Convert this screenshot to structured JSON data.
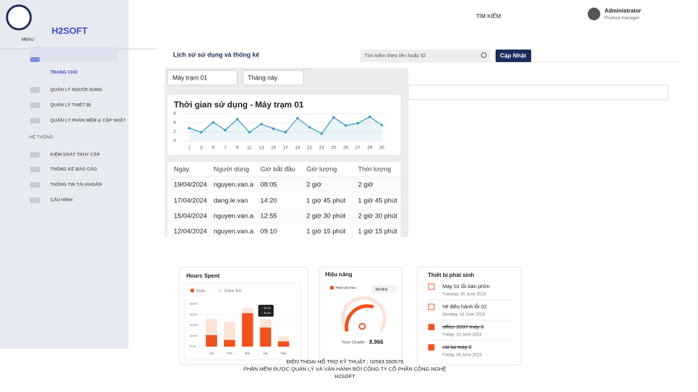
{
  "sidebar": {
    "brand": "H2SOFT",
    "menu_label": "MENU",
    "menu": [
      "TRANG CHỦ",
      "QUẢN LÝ NGƯỜI DÙNG",
      "QUẢN LÝ THIẾT BỊ",
      "QUẢN LÝ PHẦN MỀM & CẬP NHẬT"
    ],
    "section": "HỆ THỐNG",
    "system": [
      "KIỂM SOÁT TRUY CẬP",
      "THỐNG KÊ BÁO CÁO",
      "THÔNG TIN TÀI KHOẢN",
      "CẤU HÌNH"
    ]
  },
  "header": {
    "search_tab": "TÌM KIẾM",
    "user": "Administrator",
    "role": "Prodcut manager"
  },
  "toolbar": {
    "title": "Lịch sử sử dụng và thống kê",
    "search_placeholder": "Tìm kiếm theo tên hoặc ID",
    "button": "Cập Nhật"
  },
  "filters": [
    "Máy trạm 01",
    "Tháng này"
  ],
  "usage_chart": {
    "type": "line",
    "title": "Thời gian sử dụng - Máy trạm 01",
    "categories": [
      "1",
      "3",
      "5",
      "7",
      "9",
      "11",
      "13",
      "15",
      "17",
      "19",
      "21",
      "23",
      "25",
      "26",
      "27",
      "29",
      "30"
    ],
    "values": [
      2.8,
      1.9,
      4.1,
      2.4,
      4.8,
      1.9,
      3.7,
      2.7,
      1.9,
      5,
      3,
      1.6,
      5.2,
      3.4,
      3.9,
      5.3,
      3.5
    ],
    "color": "#3a9bc7",
    "ylim": [
      0,
      6
    ],
    "yticks": [
      0,
      2,
      4,
      6
    ]
  },
  "table": {
    "headers": [
      "Ngày",
      "Người dùng",
      "Giờ bắt đầu",
      "Giờ lượng",
      "Thời lượng"
    ],
    "rows": [
      [
        "19/04/2024",
        "nguyen.van.a",
        "08:05",
        "2 giờ",
        "2 giờ"
      ],
      [
        "17/04/2024",
        "dang.le.van",
        "14:20",
        "1 giờ 45 phút",
        "1 giờ 45 phút"
      ],
      [
        "15/04/2024",
        "nguyen.van.a",
        "12:55",
        "2 giờ 30 phút",
        "2 giờ 30 phút"
      ],
      [
        "12/04/2024",
        "nguyen.van.a",
        "09:10",
        "1 giờ 15 phút",
        "1 giờ 15 phút"
      ]
    ]
  },
  "hours_chart": {
    "type": "stacked-bar",
    "title": "Hours Spent",
    "categories": [
      "Jan",
      "Feb",
      "Mar",
      "Apr",
      "May"
    ],
    "series": [
      {
        "name": "Study",
        "color": "#f4511e",
        "values": [
          22,
          13,
          63,
          36,
          10
        ]
      },
      {
        "name": "Online Test",
        "color": "#fbe4d6",
        "values": [
          30,
          34,
          10,
          16,
          9
        ]
      }
    ],
    "ylim": [
      0,
      80
    ],
    "yticks": [
      {
        "value": 0,
        "label": "0 Hr"
      },
      {
        "value": 20,
        "label": "20 Hr"
      },
      {
        "value": 40,
        "label": "40 Hr"
      },
      {
        "value": 60,
        "label": "60 Hr"
      },
      {
        "value": 80,
        "label": "80 Hr"
      }
    ],
    "tooltip": [
      "35 Hr",
      "53 Hr"
    ]
  },
  "performance": {
    "title": "Hiệu năng",
    "legend": "Phát sinh theo",
    "period": "Monthly",
    "grade_label": "Your Grade:",
    "grade": "8.966"
  },
  "devices": {
    "title": "Thiết bị phát sinh",
    "items": [
      {
        "title": "Máy 01 lỗi bàn phím",
        "date": "Tuesday, 30 June 2024",
        "checked": false
      },
      {
        "title": "hệ điều hành lỗi 02",
        "date": "Monday, 24 June 2024",
        "checked": false
      },
      {
        "title": "office 2007 máy 3",
        "date": "Friday, 10 June 2024",
        "checked": true
      },
      {
        "title": "cài lại máy 2",
        "date": "Friday, 05 June 2024",
        "checked": true
      }
    ]
  },
  "footer": [
    "ĐIỆN THOẠI HỖ TRỢ KỸ THUẬT : 02583.550579",
    "PHẦN MỀM ĐƯỢC QUẢN LÝ VÀ VẬN HÀNH BỞI CÔNG TY CỔ PHẦN CÔNG NGHỆ",
    "H2SOFT"
  ]
}
